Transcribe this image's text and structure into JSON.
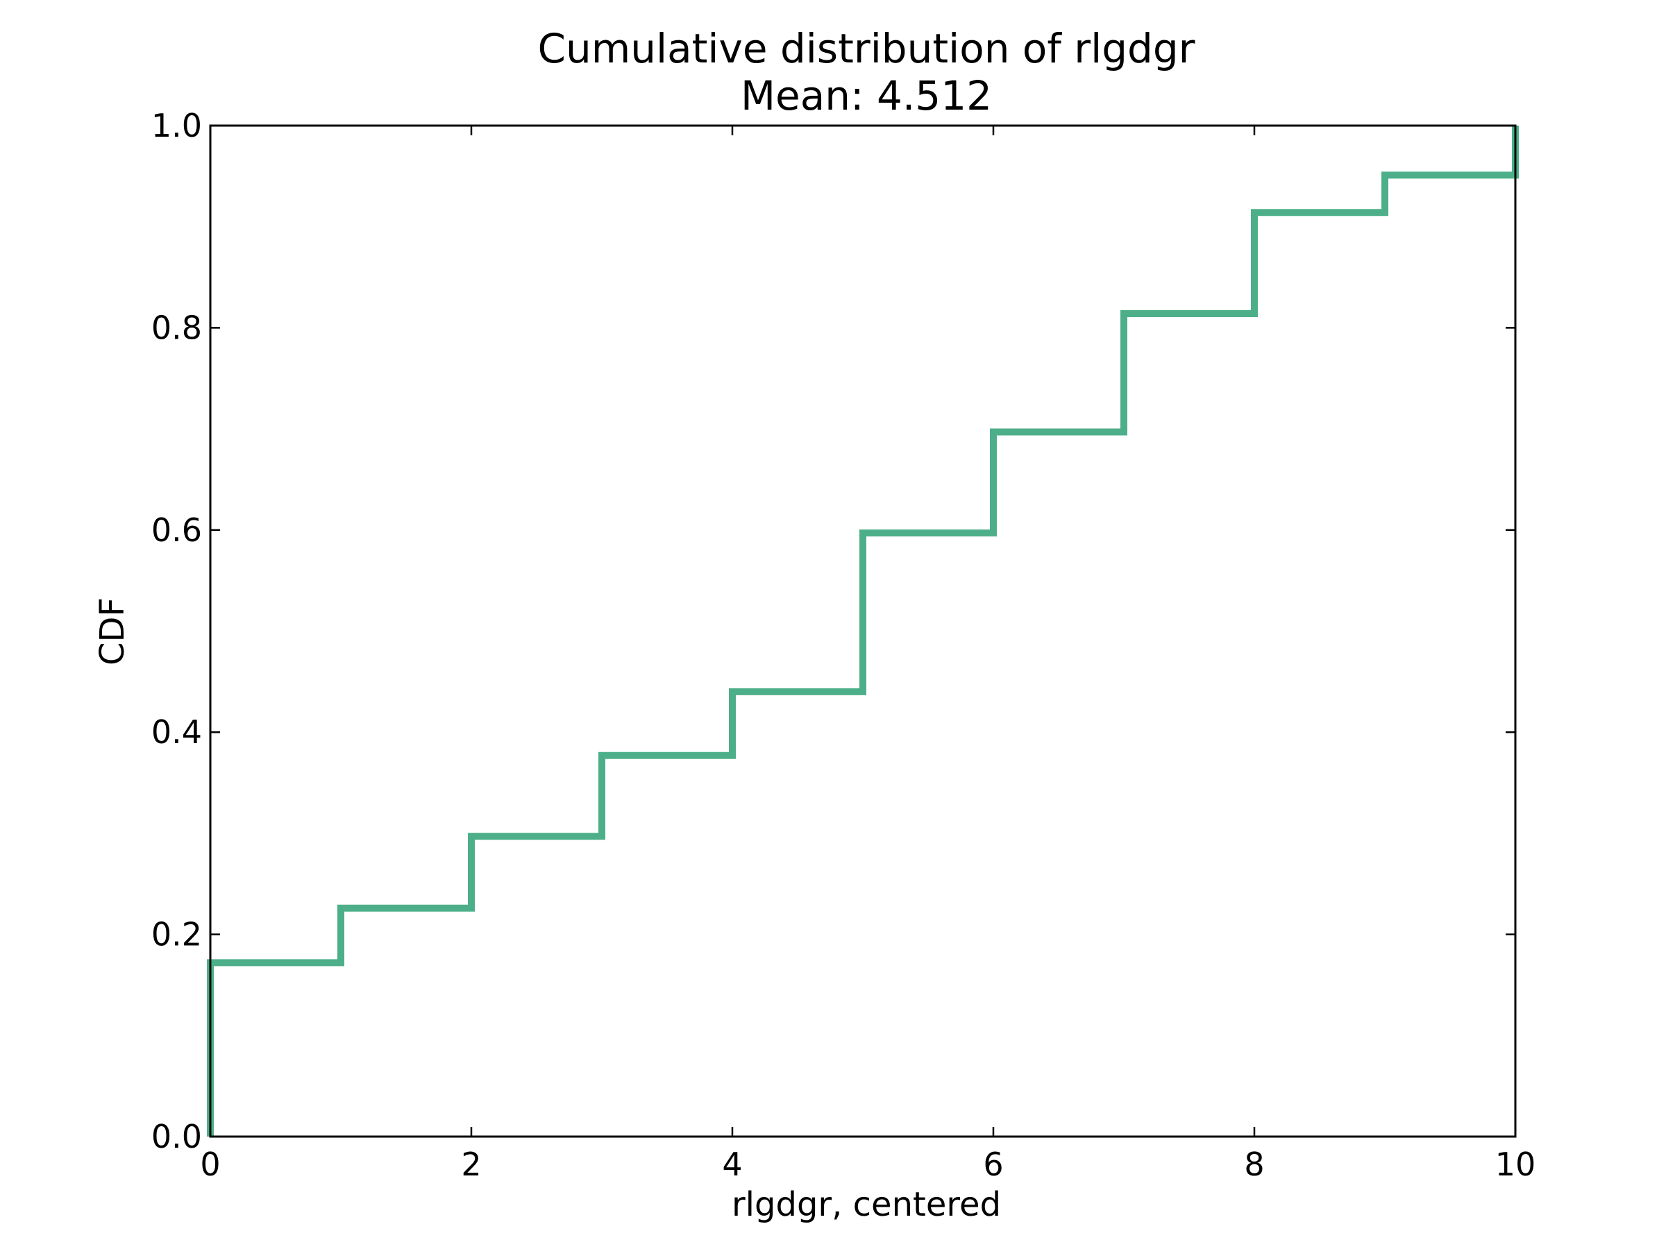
{
  "chart_data": {
    "type": "line",
    "step": "post",
    "title": "Cumulative distribution of rlgdgr",
    "subtitle": "Mean: 4.512",
    "xlabel": "rlgdgr, centered",
    "ylabel": "CDF",
    "xlim": [
      0,
      10
    ],
    "ylim": [
      0,
      1.0
    ],
    "xticks": [
      0,
      2,
      4,
      6,
      8,
      10
    ],
    "xtick_labels": [
      "0",
      "2",
      "4",
      "6",
      "8",
      "10"
    ],
    "yticks": [
      0,
      0.2,
      0.4,
      0.6,
      0.8,
      1.0
    ],
    "ytick_labels": [
      "0.0",
      "0.2",
      "0.4",
      "0.6",
      "0.8",
      "1.0"
    ],
    "grid": false,
    "series": [
      {
        "color": "#4daf8a",
        "x": [
          0,
          1,
          2,
          3,
          4,
          5,
          6,
          7,
          8,
          9,
          10
        ],
        "y": [
          0.172,
          0.226,
          0.297,
          0.377,
          0.44,
          0.597,
          0.697,
          0.814,
          0.914,
          0.951,
          1.0
        ]
      }
    ]
  }
}
